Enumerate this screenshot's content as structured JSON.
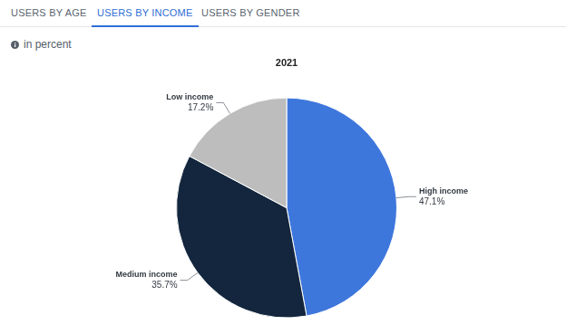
{
  "tabs": [
    "USERS BY AGE",
    "USERS BY INCOME",
    "USERS BY GENDER"
  ],
  "active_tab": "USERS BY INCOME",
  "note": "in percent",
  "chart_data": {
    "type": "pie",
    "title": "2021",
    "categories": [
      "High income",
      "Medium income",
      "Low income"
    ],
    "values": [
      47.1,
      35.7,
      17.2
    ],
    "value_labels": [
      "47.1%",
      "35.7%",
      "17.2%"
    ],
    "colors": [
      "#3e77dc",
      "#13263d",
      "#bdbdbd"
    ],
    "data_labels": true
  }
}
